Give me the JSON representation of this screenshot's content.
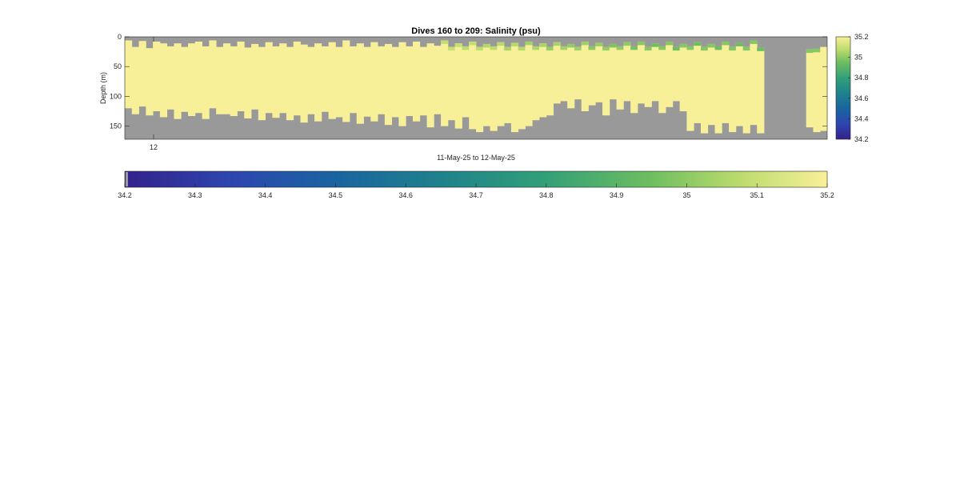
{
  "figure": {
    "title": "Dives 160 to 209: Salinity (psu)",
    "ylabel": "Depth (m)",
    "xlabel": "11-May-25 to 12-May-25",
    "colorbar_label": ""
  },
  "chart_data": {
    "type": "heatmap",
    "title": "Dives 160 to 209: Salinity (psu)",
    "xlabel": "11-May-25 to 12-May-25",
    "ylabel": "Depth (m)",
    "x_tick_labels": [
      "12"
    ],
    "y_ticks": [
      0,
      50,
      100,
      150
    ],
    "ylim": [
      0,
      172
    ],
    "y_reversed": true,
    "clim": [
      34.2,
      35.2
    ],
    "colormap": "parula",
    "missing_color": "#999999",
    "vertical_colorbar_ticks": [
      35.2,
      35,
      34.8,
      34.6,
      34.4,
      34.2
    ],
    "horizontal_colorbar_ticks": [
      34.2,
      34.3,
      34.4,
      34.5,
      34.6,
      34.7,
      34.8,
      34.9,
      35,
      35.1,
      35.2
    ],
    "n_profiles": 100,
    "profile_top_depth_m": [
      6,
      17,
      7,
      19,
      8,
      11,
      16,
      11,
      17,
      11,
      8,
      16,
      6,
      17,
      11,
      16,
      8,
      18,
      12,
      17,
      9,
      16,
      11,
      17,
      8,
      13,
      17,
      11,
      16,
      9,
      17,
      6,
      16,
      11,
      17,
      9,
      16,
      12,
      17,
      9,
      16,
      8,
      17,
      11,
      15,
      6,
      17,
      11,
      16,
      8,
      17,
      12,
      16,
      9,
      17,
      10,
      17,
      8,
      16,
      11,
      17,
      9,
      16,
      12,
      17,
      8,
      16,
      10,
      17,
      12,
      16,
      9,
      16,
      8,
      17,
      11,
      16,
      8,
      17,
      12,
      16,
      9,
      17,
      12,
      16,
      8,
      17,
      10,
      17,
      6,
      18,
      21,
      24,
      27,
      26,
      25,
      16,
      21,
      20,
      17
    ],
    "profile_bottom_depth_m": [
      120,
      130,
      117,
      132,
      125,
      135,
      122,
      138,
      126,
      133,
      128,
      138,
      120,
      130,
      130,
      133,
      125,
      137,
      122,
      140,
      128,
      136,
      128,
      140,
      132,
      144,
      130,
      142,
      126,
      138,
      135,
      143,
      128,
      146,
      134,
      142,
      130,
      148,
      135,
      150,
      133,
      142,
      132,
      152,
      130,
      150,
      140,
      154,
      135,
      155,
      160,
      150,
      158,
      150,
      145,
      160,
      155,
      150,
      140,
      135,
      132,
      112,
      108,
      120,
      105,
      125,
      115,
      110,
      132,
      105,
      122,
      108,
      128,
      112,
      118,
      108,
      128,
      118,
      108,
      125,
      158,
      145,
      162,
      148,
      162,
      145,
      160,
      150,
      162,
      148,
      162,
      150,
      162,
      148,
      160,
      150,
      158,
      152,
      160,
      158
    ],
    "missing_profiles": [
      91,
      92,
      93,
      94,
      95,
      96
    ],
    "fresh_layer": {
      "start_profile": 45,
      "min_salinity": 34.95,
      "layer_thickness_m": 6
    }
  }
}
